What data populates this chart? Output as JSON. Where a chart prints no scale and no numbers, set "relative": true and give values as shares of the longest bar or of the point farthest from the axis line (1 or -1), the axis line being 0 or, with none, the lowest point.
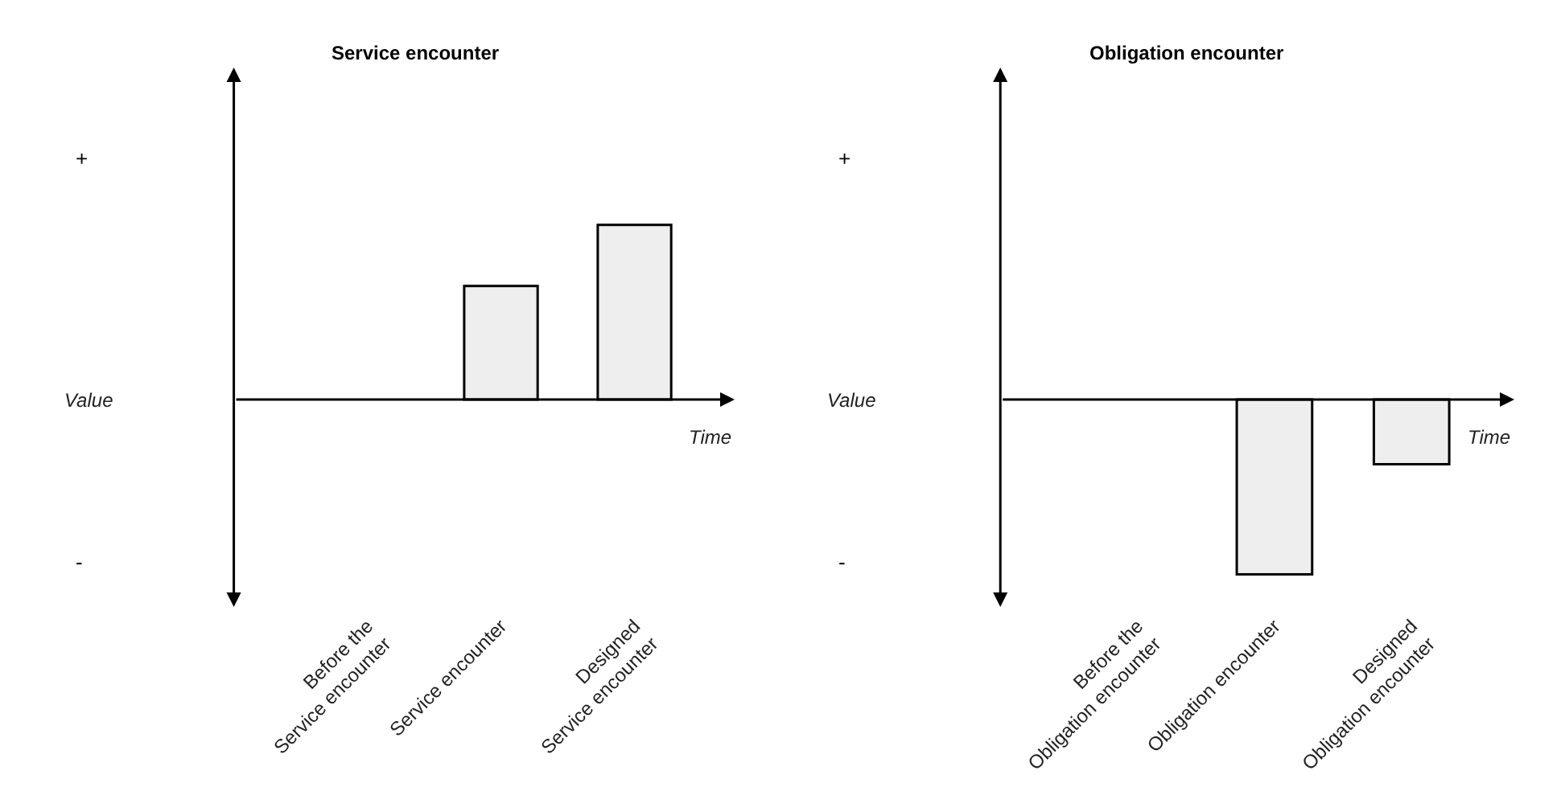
{
  "chart_data": [
    {
      "type": "bar",
      "title": "Service encounter",
      "xlabel": "Time",
      "ylabel": "Value",
      "relative": true,
      "categories": [
        "Before the\nService encounter",
        "Service encounter",
        "Designed\nService encounter"
      ],
      "values": [
        null,
        0.65,
        1
      ],
      "color": "#eeeeee",
      "annotations": [
        "+",
        "-"
      ]
    },
    {
      "type": "bar",
      "title": "Obligation encounter",
      "xlabel": "Time",
      "ylabel": "Value",
      "relative": true,
      "categories": [
        "Before the\nObligation encounter",
        "Obligation encounter",
        "Designed\nObligation encounter"
      ],
      "values": [
        null,
        -1,
        -0.37
      ],
      "color": "#eeeeee",
      "annotations": [
        "+",
        "-"
      ]
    }
  ]
}
